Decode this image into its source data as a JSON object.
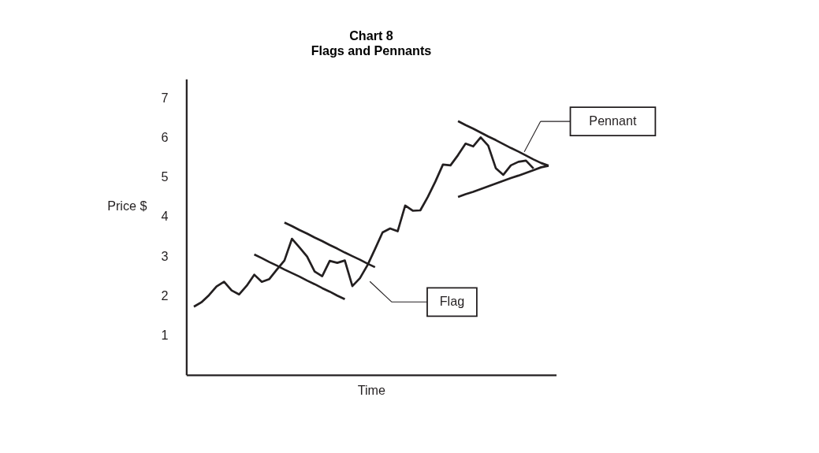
{
  "chart_data": {
    "type": "line",
    "title": "Chart 8",
    "subtitle": "Flags and Pennants",
    "xlabel": "Time",
    "ylabel": "Price $",
    "categories": [
      null,
      null,
      null,
      null,
      null,
      null,
      null,
      null,
      null,
      null,
      null,
      null,
      null,
      null,
      null,
      null,
      null,
      null,
      null,
      null,
      null,
      null,
      null,
      null,
      null,
      null,
      null,
      null,
      null,
      null,
      null,
      null,
      null,
      null,
      null,
      null,
      null,
      null,
      null,
      null,
      null,
      null,
      null,
      null,
      null,
      null,
      null,
      null
    ],
    "ylim": [
      0,
      7.5
    ],
    "yticks": [
      1,
      2,
      3,
      4,
      5,
      6,
      7
    ],
    "tick_labels": "y",
    "marker": "none",
    "line_style": "solid",
    "series": [
      {
        "color": "#231f20",
        "values": [
          1.73,
          1.84,
          2.02,
          2.24,
          2.36,
          2.14,
          2.04,
          2.26,
          2.54,
          2.36,
          2.43,
          2.67,
          2.9,
          3.45,
          3.23,
          3.0,
          2.62,
          2.5,
          2.89,
          2.84,
          2.9,
          2.25,
          2.45,
          2.78,
          3.19,
          3.61,
          3.71,
          3.64,
          4.29,
          4.16,
          4.17,
          4.51,
          4.9,
          5.33,
          5.31,
          5.57,
          5.86,
          5.79,
          6.02,
          5.81,
          5.24,
          5.07,
          5.31,
          5.4,
          5.43,
          5.23,
          null,
          null
        ]
      },
      {
        "color": "#231f20",
        "values": [
          null,
          null,
          null,
          null,
          null,
          null,
          null,
          null,
          null,
          null,
          null,
          null,
          3.86,
          3.77,
          3.67,
          3.58,
          3.48,
          3.39,
          3.29,
          3.2,
          3.1,
          3.01,
          2.92,
          2.82,
          2.73,
          null,
          null,
          null,
          null,
          null,
          null,
          null,
          null,
          null,
          null,
          null,
          null,
          null,
          null,
          null,
          null,
          null,
          null,
          null,
          null,
          null,
          null,
          null
        ]
      },
      {
        "color": "#231f20",
        "values": [
          null,
          null,
          null,
          null,
          null,
          null,
          null,
          null,
          3.05,
          2.96,
          2.86,
          2.77,
          2.67,
          2.58,
          2.49,
          2.39,
          2.3,
          2.2,
          2.11,
          2.01,
          1.92,
          null,
          null,
          null,
          null,
          null,
          null,
          null,
          null,
          null,
          null,
          null,
          null,
          null,
          null,
          null,
          null,
          null,
          null,
          null,
          null,
          null,
          null,
          null,
          null,
          null,
          null,
          null
        ]
      },
      {
        "color": "#231f20",
        "values": [
          null,
          null,
          null,
          null,
          null,
          null,
          null,
          null,
          null,
          null,
          null,
          null,
          null,
          null,
          null,
          null,
          null,
          null,
          null,
          null,
          null,
          null,
          null,
          null,
          null,
          null,
          null,
          null,
          null,
          null,
          null,
          null,
          null,
          null,
          null,
          6.43,
          6.33,
          6.24,
          6.14,
          6.04,
          5.95,
          5.85,
          5.75,
          5.66,
          5.56,
          5.46,
          5.37,
          5.3
        ]
      },
      {
        "color": "#231f20",
        "values": [
          null,
          null,
          null,
          null,
          null,
          null,
          null,
          null,
          null,
          null,
          null,
          null,
          null,
          null,
          null,
          null,
          null,
          null,
          null,
          null,
          null,
          null,
          null,
          null,
          null,
          null,
          null,
          null,
          null,
          null,
          null,
          null,
          null,
          null,
          null,
          4.51,
          4.58,
          4.64,
          4.71,
          4.78,
          4.85,
          4.92,
          4.99,
          5.05,
          5.12,
          5.19,
          5.26,
          5.3
        ]
      }
    ],
    "annotations": [
      "Flag",
      "Pennant"
    ]
  }
}
